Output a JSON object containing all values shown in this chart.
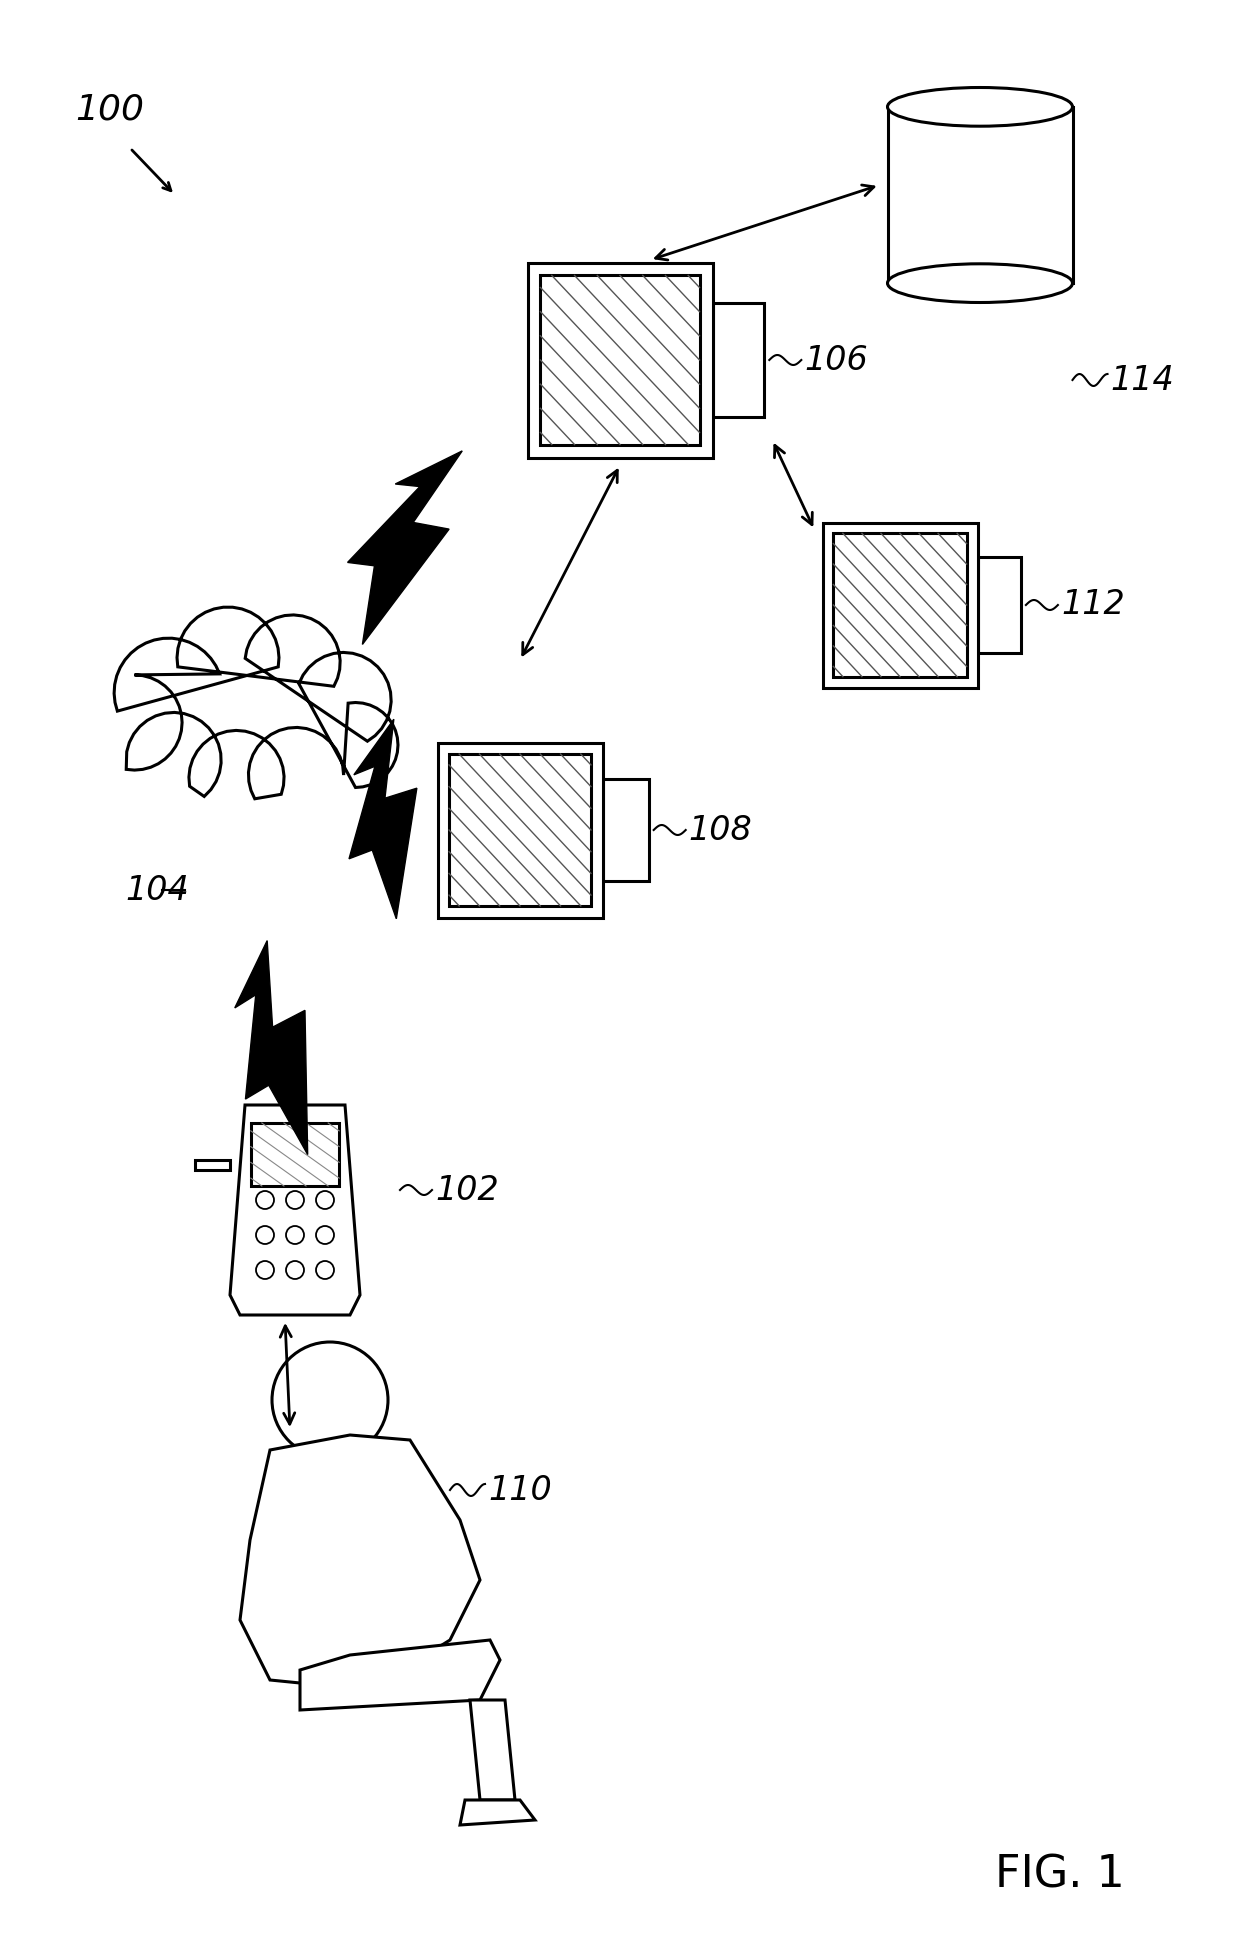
{
  "bg_color": "#ffffff",
  "label_100": "100",
  "label_102": "102",
  "label_104": "104",
  "label_106": "106",
  "label_108": "108",
  "label_110": "110",
  "label_112": "112",
  "label_114": "114",
  "fig_label": "FIG. 1"
}
